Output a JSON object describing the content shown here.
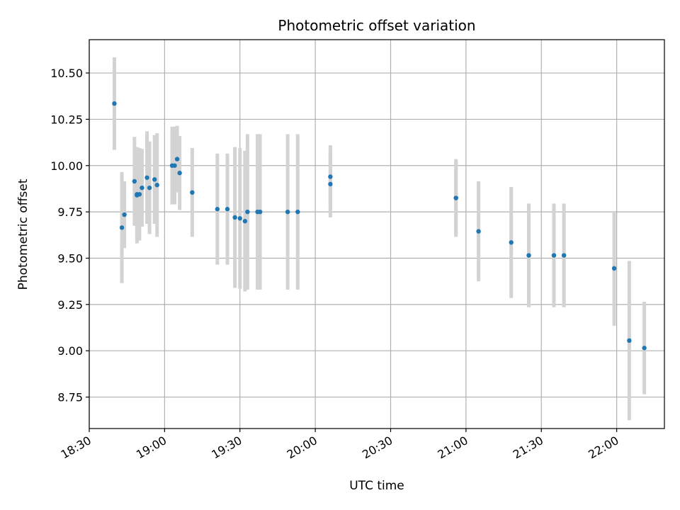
{
  "chart_data": {
    "type": "scatter",
    "title": "Photometric offset variation",
    "xlabel": "UTC time",
    "ylabel": "Photometric offset",
    "x_ticks": [
      "18:30",
      "19:00",
      "19:30",
      "20:00",
      "20:30",
      "21:00",
      "21:30",
      "22:00"
    ],
    "y_ticks": [
      "8.75",
      "9.00",
      "9.25",
      "9.50",
      "9.75",
      "10.00",
      "10.25",
      "10.50"
    ],
    "xlim": [
      "18:30",
      "22:19"
    ],
    "ylim": [
      8.58,
      10.68
    ],
    "grid": true,
    "colors": {
      "marker": "#1f77b4",
      "errorbar": "#d3d3d3",
      "grid": "#b0b0b0"
    },
    "series": [
      {
        "points": [
          {
            "x": "18:40",
            "y": 10.335,
            "err": 0.25
          },
          {
            "x": "18:43",
            "y": 9.665,
            "err": 0.3
          },
          {
            "x": "18:44",
            "y": 9.735,
            "err": 0.18
          },
          {
            "x": "18:48",
            "y": 9.915,
            "err": 0.24
          },
          {
            "x": "18:49",
            "y": 9.845,
            "err": 0.17
          },
          {
            "x": "18:49",
            "y": 9.84,
            "err": 0.26
          },
          {
            "x": "18:50",
            "y": 9.845,
            "err": 0.25
          },
          {
            "x": "18:51",
            "y": 9.88,
            "err": 0.21
          },
          {
            "x": "18:53",
            "y": 9.935,
            "err": 0.25
          },
          {
            "x": "18:54",
            "y": 9.88,
            "err": 0.25
          },
          {
            "x": "18:56",
            "y": 9.925,
            "err": 0.24
          },
          {
            "x": "18:57",
            "y": 9.895,
            "err": 0.28
          },
          {
            "x": "19:03",
            "y": 10.0,
            "err": 0.21
          },
          {
            "x": "19:04",
            "y": 10.0,
            "err": 0.21
          },
          {
            "x": "19:05",
            "y": 10.035,
            "err": 0.18
          },
          {
            "x": "19:06",
            "y": 9.96,
            "err": 0.2
          },
          {
            "x": "19:11",
            "y": 9.855,
            "err": 0.24
          },
          {
            "x": "19:21",
            "y": 9.765,
            "err": 0.3
          },
          {
            "x": "19:25",
            "y": 9.765,
            "err": 0.3
          },
          {
            "x": "19:28",
            "y": 9.72,
            "err": 0.38
          },
          {
            "x": "19:30",
            "y": 9.715,
            "err": 0.38
          },
          {
            "x": "19:32",
            "y": 9.7,
            "err": 0.38
          },
          {
            "x": "19:33",
            "y": 9.75,
            "err": 0.42
          },
          {
            "x": "19:37",
            "y": 9.75,
            "err": 0.42
          },
          {
            "x": "19:38",
            "y": 9.75,
            "err": 0.42
          },
          {
            "x": "19:49",
            "y": 9.75,
            "err": 0.42
          },
          {
            "x": "19:53",
            "y": 9.75,
            "err": 0.42
          },
          {
            "x": "20:06",
            "y": 9.94,
            "err": 0.17
          },
          {
            "x": "20:06",
            "y": 9.9,
            "err": 0.18
          },
          {
            "x": "20:56",
            "y": 9.825,
            "err": 0.21
          },
          {
            "x": "20:56",
            "y": 9.825,
            "err": 0.2
          },
          {
            "x": "21:05",
            "y": 9.645,
            "err": 0.27
          },
          {
            "x": "21:18",
            "y": 9.585,
            "err": 0.3
          },
          {
            "x": "21:25",
            "y": 9.515,
            "err": 0.28
          },
          {
            "x": "21:35",
            "y": 9.515,
            "err": 0.28
          },
          {
            "x": "21:39",
            "y": 9.515,
            "err": 0.28
          },
          {
            "x": "21:59",
            "y": 9.445,
            "err": 0.31
          },
          {
            "x": "22:05",
            "y": 9.055,
            "err": 0.43
          },
          {
            "x": "22:11",
            "y": 9.015,
            "err": 0.25
          }
        ]
      }
    ]
  }
}
